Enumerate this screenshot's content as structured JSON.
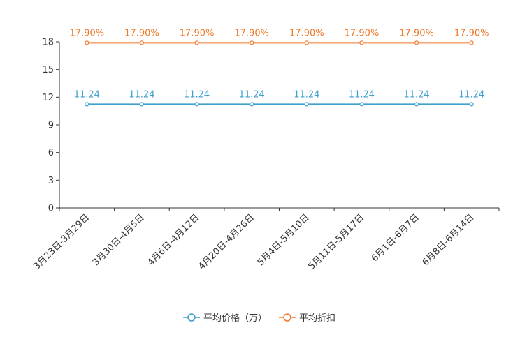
{
  "chart_data": {
    "type": "line",
    "title": "",
    "xlabel": "",
    "ylabel": "",
    "ylim": [
      0,
      18
    ],
    "yticks": [
      0,
      3,
      6,
      9,
      12,
      15,
      18
    ],
    "categories": [
      "3月23日-3月29日",
      "3月30日-4月5日",
      "4月6日-4月12日",
      "4月20日-4月26日",
      "5月4日-5月10日",
      "5月11日-5月17日",
      "6月1日-6月7日",
      "6月8日-6月14日"
    ],
    "series": [
      {
        "name": "平均价格（万）",
        "color": "#3fa0d0",
        "values": [
          11.24,
          11.24,
          11.24,
          11.24,
          11.24,
          11.24,
          11.24,
          11.24
        ],
        "labels": [
          "11.24",
          "11.24",
          "11.24",
          "11.24",
          "11.24",
          "11.24",
          "11.24",
          "11.24"
        ]
      },
      {
        "name": "平均折扣",
        "color": "#f07828",
        "values": [
          17.9,
          17.9,
          17.9,
          17.9,
          17.9,
          17.9,
          17.9,
          17.9
        ],
        "labels": [
          "17.90%",
          "17.90%",
          "17.90%",
          "17.90%",
          "17.90%",
          "17.90%",
          "17.90%",
          "17.90%"
        ]
      }
    ],
    "legend": "bottom-center"
  }
}
